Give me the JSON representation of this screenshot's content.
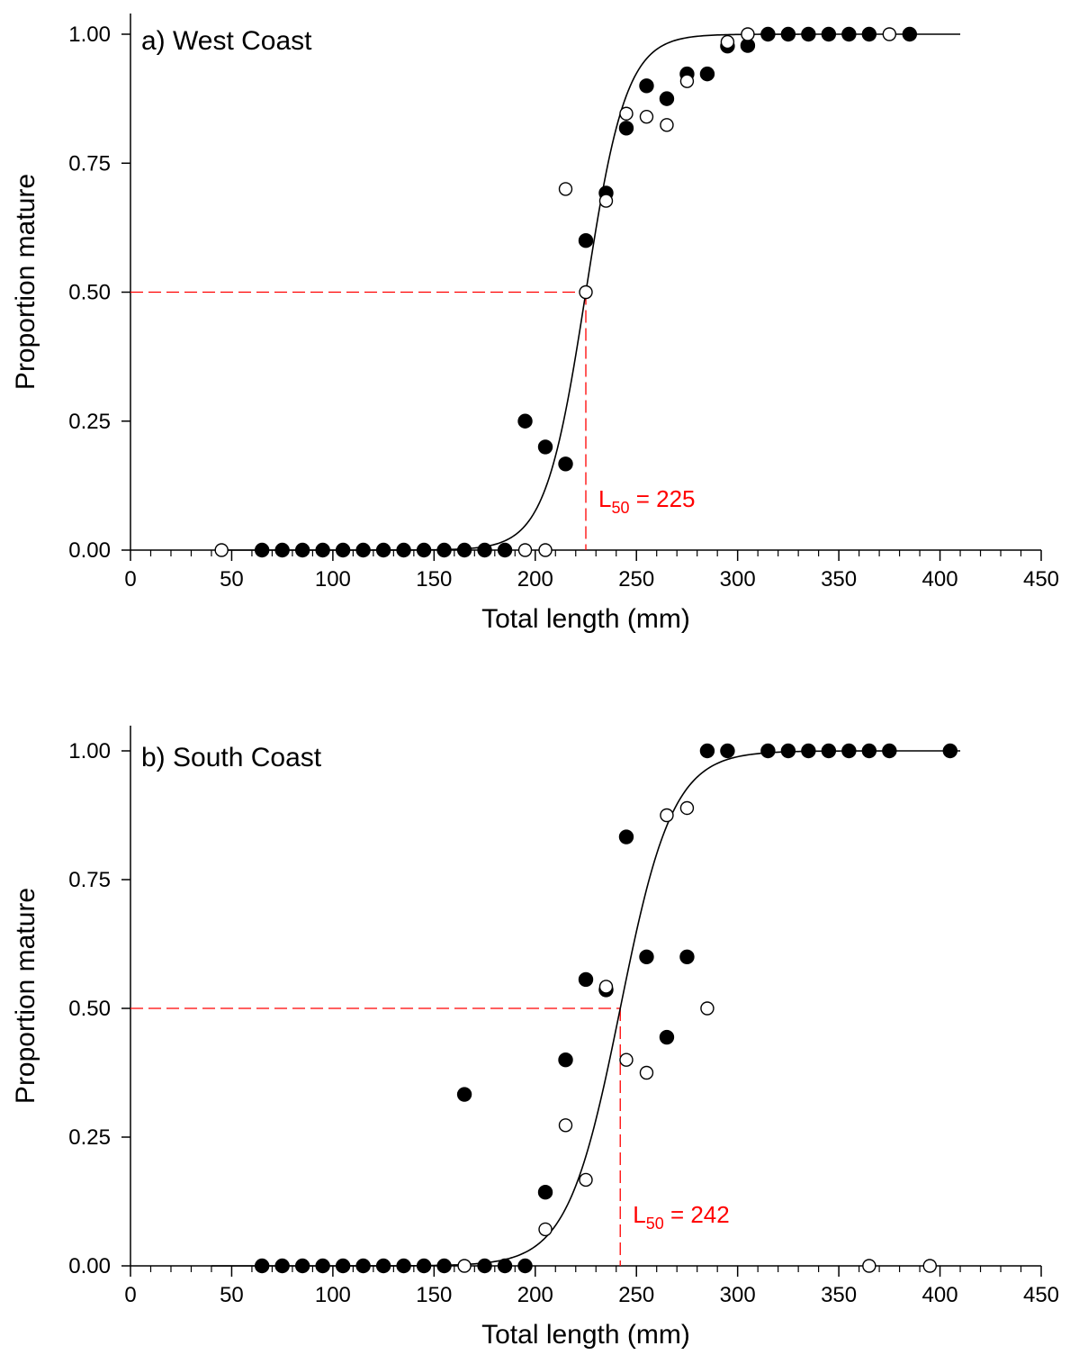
{
  "chart_data": [
    {
      "type": "scatter",
      "panel_label": "a) West Coast",
      "xlabel": "Total length (mm)",
      "ylabel": "Proportion mature",
      "xlim": [
        0,
        450
      ],
      "ylim": [
        0,
        1.05
      ],
      "x_ticks": [
        0,
        50,
        100,
        150,
        200,
        250,
        300,
        350,
        400,
        450
      ],
      "y_ticks": [
        "0.00",
        "0.25",
        "0.50",
        "0.75",
        "1.00"
      ],
      "grid": false,
      "legend": "none",
      "annotation": {
        "label_main": "L",
        "label_sub": "50",
        "label_rest": " = 225",
        "x": 225,
        "y": 0.5,
        "color": "#ff0000"
      },
      "curve": {
        "type": "logistic",
        "l50": 225,
        "slope": 0.1,
        "x_range": [
          45,
          410
        ]
      },
      "series": [
        {
          "marker": "filled",
          "points": [
            [
              65,
              0
            ],
            [
              75,
              0
            ],
            [
              85,
              0
            ],
            [
              95,
              0
            ],
            [
              105,
              0
            ],
            [
              115,
              0
            ],
            [
              125,
              0
            ],
            [
              135,
              0
            ],
            [
              145,
              0
            ],
            [
              155,
              0
            ],
            [
              165,
              0
            ],
            [
              175,
              0
            ],
            [
              185,
              0
            ],
            [
              195,
              0.25
            ],
            [
              205,
              0.2
            ],
            [
              215,
              0.167
            ],
            [
              225,
              0.6
            ],
            [
              235,
              0.692
            ],
            [
              245,
              0.818
            ],
            [
              255,
              0.9
            ],
            [
              265,
              0.875
            ],
            [
              275,
              0.923
            ],
            [
              285,
              0.923
            ],
            [
              295,
              0.977
            ],
            [
              305,
              0.978
            ],
            [
              315,
              1
            ],
            [
              325,
              1
            ],
            [
              335,
              1
            ],
            [
              345,
              1
            ],
            [
              355,
              1
            ],
            [
              365,
              1
            ],
            [
              385,
              1
            ]
          ]
        },
        {
          "marker": "open",
          "points": [
            [
              45,
              0
            ],
            [
              195,
              0
            ],
            [
              205,
              0
            ],
            [
              215,
              0.7
            ],
            [
              225,
              0.5
            ],
            [
              235,
              0.677
            ],
            [
              245,
              0.846
            ],
            [
              255,
              0.84
            ],
            [
              265,
              0.824
            ],
            [
              275,
              0.909
            ],
            [
              295,
              0.985
            ],
            [
              305,
              1
            ],
            [
              375,
              1
            ]
          ]
        }
      ]
    },
    {
      "type": "scatter",
      "panel_label": "b) South Coast",
      "xlabel": "Total length (mm)",
      "ylabel": "Proportion mature",
      "xlim": [
        0,
        450
      ],
      "ylim": [
        0,
        1.05
      ],
      "x_ticks": [
        0,
        50,
        100,
        150,
        200,
        250,
        300,
        350,
        400,
        450
      ],
      "y_ticks": [
        "0.00",
        "0.25",
        "0.50",
        "0.75",
        "1.00"
      ],
      "grid": false,
      "legend": "none",
      "annotation": {
        "label_main": "L",
        "label_sub": "50",
        "label_rest": " = 242",
        "x": 242,
        "y": 0.5,
        "color": "#ff0000"
      },
      "curve": {
        "type": "logistic",
        "l50": 242,
        "slope": 0.077,
        "x_range": [
          40,
          410
        ]
      },
      "series": [
        {
          "marker": "filled",
          "points": [
            [
              65,
              0
            ],
            [
              75,
              0
            ],
            [
              85,
              0
            ],
            [
              95,
              0
            ],
            [
              105,
              0
            ],
            [
              115,
              0
            ],
            [
              125,
              0
            ],
            [
              135,
              0
            ],
            [
              145,
              0
            ],
            [
              155,
              0
            ],
            [
              165,
              0.333
            ],
            [
              175,
              0
            ],
            [
              185,
              0
            ],
            [
              195,
              0
            ],
            [
              205,
              0.143
            ],
            [
              215,
              0.4
            ],
            [
              225,
              0.556
            ],
            [
              235,
              0.536
            ],
            [
              245,
              0.833
            ],
            [
              255,
              0.6
            ],
            [
              265,
              0.444
            ],
            [
              275,
              0.6
            ],
            [
              285,
              1
            ],
            [
              295,
              1
            ],
            [
              315,
              1
            ],
            [
              325,
              1
            ],
            [
              335,
              1
            ],
            [
              345,
              1
            ],
            [
              355,
              1
            ],
            [
              365,
              1
            ],
            [
              375,
              1
            ],
            [
              405,
              1
            ]
          ]
        },
        {
          "marker": "open",
          "points": [
            [
              165,
              0
            ],
            [
              205,
              0.071
            ],
            [
              215,
              0.273
            ],
            [
              225,
              0.167
            ],
            [
              235,
              0.542
            ],
            [
              245,
              0.4
            ],
            [
              255,
              0.375
            ],
            [
              265,
              0.875
            ],
            [
              275,
              0.889
            ],
            [
              285,
              0.5
            ],
            [
              365,
              0
            ],
            [
              395,
              0
            ]
          ]
        }
      ]
    }
  ]
}
